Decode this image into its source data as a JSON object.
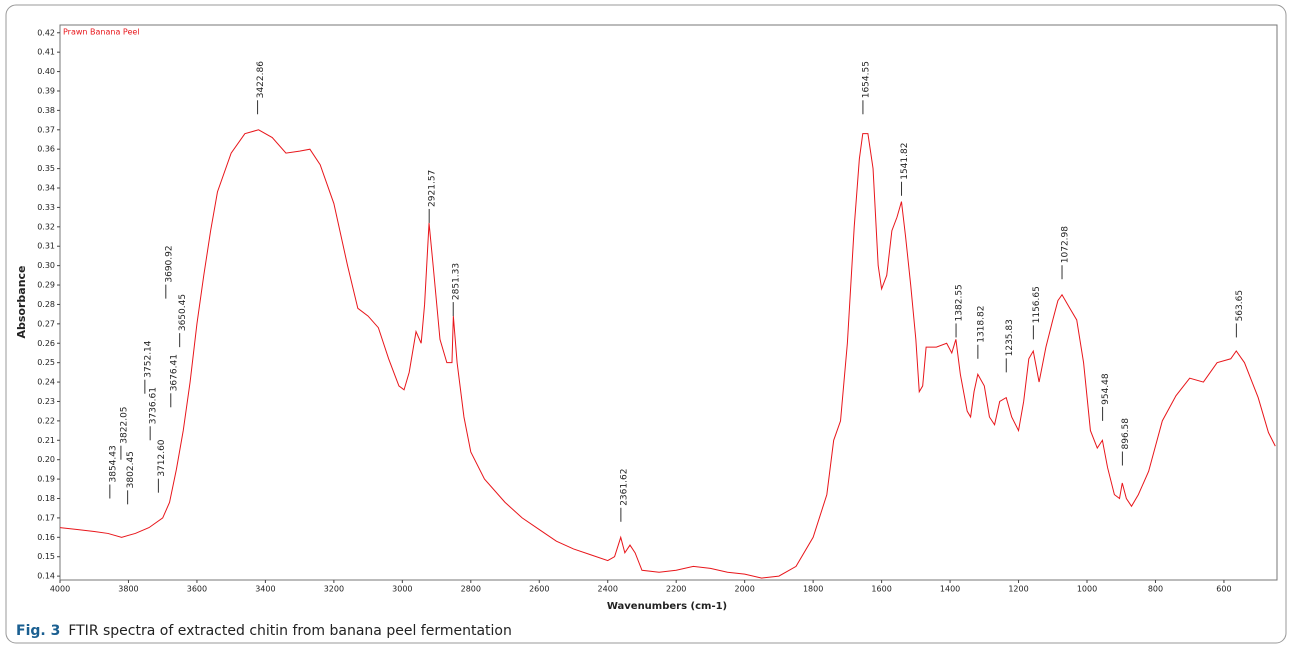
{
  "chart_data": {
    "type": "line",
    "legend_label": "Prawn Banana Peel",
    "xlabel": "Wavenumbers (cm-1)",
    "ylabel": "Absorbance",
    "caption_label": "Fig. 3",
    "caption": "FTIR spectra of extracted chitin from banana peel fermentation",
    "xlim": [
      4000,
      445
    ],
    "xticks": [
      4000,
      3800,
      3600,
      3400,
      3200,
      3000,
      2800,
      2600,
      2400,
      2200,
      2000,
      1800,
      1600,
      1400,
      1200,
      1000,
      800,
      600
    ],
    "ylim": [
      0.138,
      0.424
    ],
    "yticks": [
      0.14,
      0.15,
      0.16,
      0.17,
      0.18,
      0.19,
      {
        "value": 0.2,
        "label": "0.20"
      },
      0.21,
      0.22,
      0.23,
      0.24,
      0.25,
      0.26,
      0.27,
      0.28,
      0.29,
      {
        "value": 0.3,
        "label": "0.30"
      },
      0.31,
      0.32,
      0.33,
      0.34,
      0.35,
      0.36,
      0.37,
      0.38,
      0.39,
      {
        "value": 0.4,
        "label": "0.40"
      },
      0.41,
      0.42
    ],
    "x": [
      4000,
      3950,
      3900,
      3860,
      3820,
      3780,
      3740,
      3700,
      3680,
      3660,
      3640,
      3620,
      3600,
      3580,
      3560,
      3540,
      3500,
      3460,
      3420,
      3380,
      3340,
      3300,
      3270,
      3240,
      3200,
      3160,
      3130,
      3100,
      3070,
      3040,
      3010,
      2995,
      2980,
      2960,
      2945,
      2935,
      2922,
      2910,
      2890,
      2870,
      2855,
      2851,
      2840,
      2820,
      2800,
      2760,
      2700,
      2650,
      2600,
      2550,
      2500,
      2450,
      2400,
      2380,
      2362,
      2350,
      2335,
      2320,
      2300,
      2250,
      2200,
      2150,
      2100,
      2050,
      2000,
      1950,
      1900,
      1850,
      1800,
      1760,
      1740,
      1720,
      1700,
      1680,
      1665,
      1655,
      1640,
      1625,
      1610,
      1600,
      1585,
      1570,
      1555,
      1542,
      1530,
      1515,
      1500,
      1490,
      1480,
      1470,
      1440,
      1410,
      1395,
      1383,
      1370,
      1350,
      1340,
      1330,
      1319,
      1300,
      1285,
      1270,
      1255,
      1236,
      1220,
      1200,
      1185,
      1170,
      1157,
      1140,
      1120,
      1100,
      1085,
      1073,
      1050,
      1030,
      1010,
      990,
      970,
      955,
      940,
      920,
      905,
      897,
      885,
      870,
      850,
      820,
      780,
      740,
      700,
      660,
      620,
      580,
      564,
      540,
      500,
      470,
      450
    ],
    "series": [
      {
        "name": "Prawn Banana Peel",
        "color": "#e8161b",
        "values": [
          0.165,
          0.164,
          0.163,
          0.162,
          0.16,
          0.162,
          0.165,
          0.17,
          0.178,
          0.195,
          0.215,
          0.24,
          0.27,
          0.295,
          0.318,
          0.338,
          0.358,
          0.368,
          0.37,
          0.366,
          0.358,
          0.359,
          0.36,
          0.352,
          0.332,
          0.3,
          0.278,
          0.274,
          0.268,
          0.252,
          0.238,
          0.236,
          0.245,
          0.266,
          0.26,
          0.28,
          0.322,
          0.3,
          0.262,
          0.25,
          0.25,
          0.274,
          0.25,
          0.222,
          0.204,
          0.19,
          0.178,
          0.17,
          0.164,
          0.158,
          0.154,
          0.151,
          0.148,
          0.15,
          0.16,
          0.152,
          0.156,
          0.152,
          0.143,
          0.142,
          0.143,
          0.145,
          0.144,
          0.142,
          0.141,
          0.139,
          0.14,
          0.145,
          0.16,
          0.182,
          0.21,
          0.22,
          0.26,
          0.32,
          0.355,
          0.368,
          0.368,
          0.35,
          0.3,
          0.288,
          0.295,
          0.318,
          0.325,
          0.333,
          0.315,
          0.29,
          0.262,
          0.235,
          0.238,
          0.258,
          0.258,
          0.26,
          0.255,
          0.262,
          0.244,
          0.225,
          0.222,
          0.235,
          0.244,
          0.238,
          0.222,
          0.218,
          0.23,
          0.232,
          0.222,
          0.215,
          0.23,
          0.252,
          0.256,
          0.24,
          0.258,
          0.272,
          0.282,
          0.285,
          0.278,
          0.272,
          0.25,
          0.215,
          0.206,
          0.21,
          0.196,
          0.182,
          0.18,
          0.188,
          0.18,
          0.176,
          0.182,
          0.194,
          0.22,
          0.233,
          0.242,
          0.24,
          0.25,
          0.252,
          0.256,
          0.25,
          0.232,
          0.214,
          0.207
        ]
      }
    ],
    "annotations": [
      {
        "x": 3854.43,
        "y": 0.18
      },
      {
        "x": 3822.05,
        "y": 0.2
      },
      {
        "x": 3802.45,
        "y": 0.177
      },
      {
        "x": 3752.14,
        "y": 0.234
      },
      {
        "x": 3736.61,
        "y": 0.21
      },
      {
        "x": 3712.6,
        "label": "3712.60",
        "y": 0.183
      },
      {
        "x": 3690.92,
        "y": 0.283
      },
      {
        "x": 3676.41,
        "y": 0.227
      },
      {
        "x": 3650.45,
        "y": 0.258
      },
      {
        "x": 3422.86,
        "y": 0.378
      },
      {
        "x": 2921.57,
        "y": 0.322
      },
      {
        "x": 2851.33,
        "y": 0.274
      },
      {
        "x": 2361.62,
        "y": 0.168
      },
      {
        "x": 1654.55,
        "y": 0.378
      },
      {
        "x": 1541.82,
        "y": 0.336
      },
      {
        "x": 1382.55,
        "y": 0.263
      },
      {
        "x": 1318.82,
        "y": 0.252
      },
      {
        "x": 1235.83,
        "y": 0.245
      },
      {
        "x": 1156.65,
        "y": 0.262
      },
      {
        "x": 1072.98,
        "y": 0.293
      },
      {
        "x": 954.48,
        "y": 0.22
      },
      {
        "x": 896.58,
        "y": 0.197
      },
      {
        "x": 563.65,
        "y": 0.263
      }
    ]
  }
}
